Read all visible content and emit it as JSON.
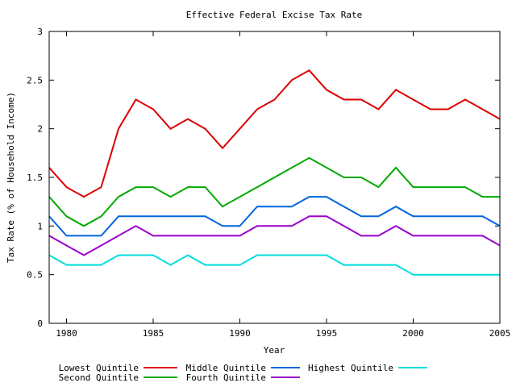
{
  "chart_data": {
    "type": "line",
    "title": "Effective Federal Excise Tax Rate",
    "xlabel": "Year",
    "ylabel": "Tax Rate (% of Household Income)",
    "xlim": [
      1979,
      2005
    ],
    "ylim": [
      0,
      3
    ],
    "x_ticks": [
      1980,
      1985,
      1990,
      1995,
      2000,
      2005
    ],
    "y_ticks": [
      0,
      0.5,
      1,
      1.5,
      2,
      2.5,
      3
    ],
    "y_tick_labels": [
      "0",
      "0.5",
      "1",
      "1.5",
      "2",
      "2.5",
      "3"
    ],
    "legend_placement": "bottom",
    "x": [
      1979,
      1980,
      1981,
      1982,
      1983,
      1984,
      1985,
      1986,
      1987,
      1988,
      1989,
      1990,
      1991,
      1992,
      1993,
      1994,
      1995,
      1996,
      1997,
      1998,
      1999,
      2000,
      2001,
      2002,
      2003,
      2004,
      2005
    ],
    "series": [
      {
        "name": "Lowest Quintile",
        "color": "#dd0000",
        "values": [
          1.6,
          1.4,
          1.3,
          1.4,
          2.0,
          2.3,
          2.2,
          2.0,
          2.1,
          2.0,
          1.8,
          2.0,
          2.2,
          2.3,
          2.5,
          2.6,
          2.4,
          2.3,
          2.3,
          2.2,
          2.4,
          2.3,
          2.2,
          2.2,
          2.3,
          2.2,
          2.1
        ]
      },
      {
        "name": "Second Quintile",
        "color": "#00aa00",
        "values": [
          1.3,
          1.1,
          1.0,
          1.1,
          1.3,
          1.4,
          1.4,
          1.3,
          1.4,
          1.4,
          1.2,
          1.3,
          1.4,
          1.5,
          1.6,
          1.7,
          1.6,
          1.5,
          1.5,
          1.4,
          1.6,
          1.4,
          1.4,
          1.4,
          1.4,
          1.3,
          1.3
        ]
      },
      {
        "name": "Middle Quintile",
        "color": "#0066dd",
        "values": [
          1.1,
          0.9,
          0.9,
          0.9,
          1.1,
          1.1,
          1.1,
          1.1,
          1.1,
          1.1,
          1.0,
          1.0,
          1.2,
          1.2,
          1.2,
          1.3,
          1.3,
          1.2,
          1.1,
          1.1,
          1.2,
          1.1,
          1.1,
          1.1,
          1.1,
          1.1,
          1.0
        ]
      },
      {
        "name": "Fourth Quintile",
        "color": "#9900cc",
        "values": [
          0.9,
          0.8,
          0.7,
          0.8,
          0.9,
          1.0,
          0.9,
          0.9,
          0.9,
          0.9,
          0.9,
          0.9,
          1.0,
          1.0,
          1.0,
          1.1,
          1.1,
          1.0,
          0.9,
          0.9,
          1.0,
          0.9,
          0.9,
          0.9,
          0.9,
          0.9,
          0.8
        ]
      },
      {
        "name": "Highest Quintile",
        "color": "#00dddd",
        "values": [
          0.7,
          0.6,
          0.6,
          0.6,
          0.7,
          0.7,
          0.7,
          0.6,
          0.7,
          0.6,
          0.6,
          0.6,
          0.7,
          0.7,
          0.7,
          0.7,
          0.7,
          0.6,
          0.6,
          0.6,
          0.6,
          0.5,
          0.5,
          0.5,
          0.5,
          0.5,
          0.5
        ]
      }
    ]
  }
}
